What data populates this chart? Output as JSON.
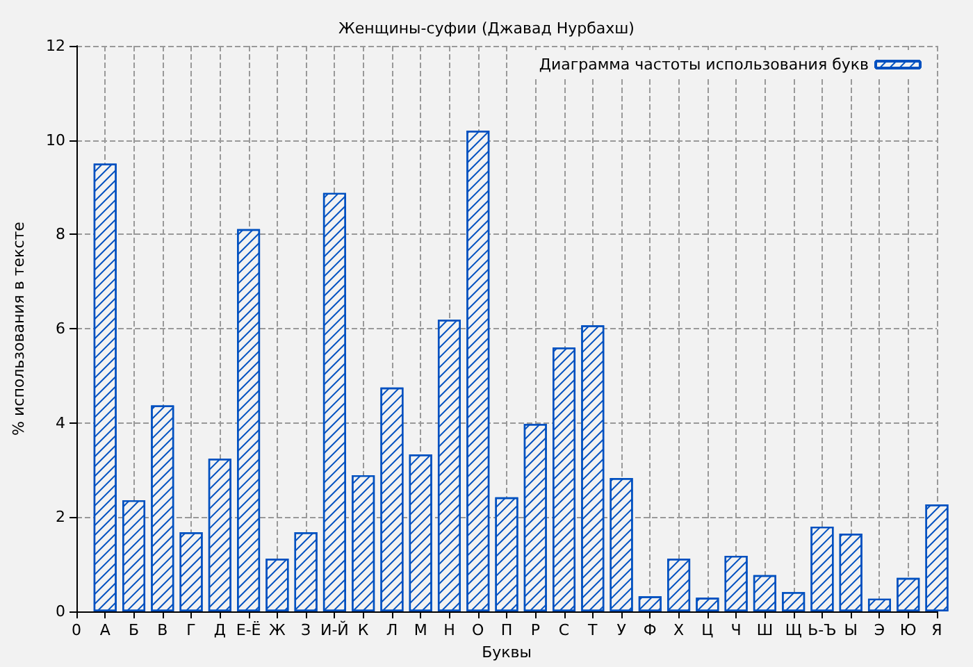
{
  "chart_data": {
    "type": "bar",
    "title": "Женщины-суфии (Джавад Нурбахш)",
    "xlabel": "Буквы",
    "ylabel": "% использования в тексте",
    "categories": [
      "0",
      "А",
      "Б",
      "В",
      "Г",
      "Д",
      "Е-Ё",
      "Ж",
      "З",
      "И-Й",
      "К",
      "Л",
      "М",
      "Н",
      "О",
      "П",
      "Р",
      "С",
      "Т",
      "У",
      "Ф",
      "Х",
      "Ц",
      "Ч",
      "Ш",
      "Щ",
      "Ь-Ъ",
      "Ы",
      "Э",
      "Ю",
      "Я"
    ],
    "series": [
      {
        "name": "Диаграмма частоты использования букв",
        "color": "#0050c0",
        "values": [
          null,
          9.5,
          2.36,
          4.37,
          1.68,
          3.24,
          8.11,
          1.12,
          1.68,
          8.88,
          2.89,
          4.75,
          3.33,
          6.19,
          10.2,
          2.42,
          3.98,
          5.6,
          6.07,
          2.83,
          0.32,
          1.12,
          0.29,
          1.18,
          0.77,
          0.41,
          1.8,
          1.65,
          0.27,
          0.71,
          2.27
        ]
      }
    ],
    "ylim": [
      0,
      12
    ],
    "yticks": [
      0,
      2,
      4,
      6,
      8,
      10,
      12
    ],
    "grid": true,
    "legend": "top right"
  }
}
